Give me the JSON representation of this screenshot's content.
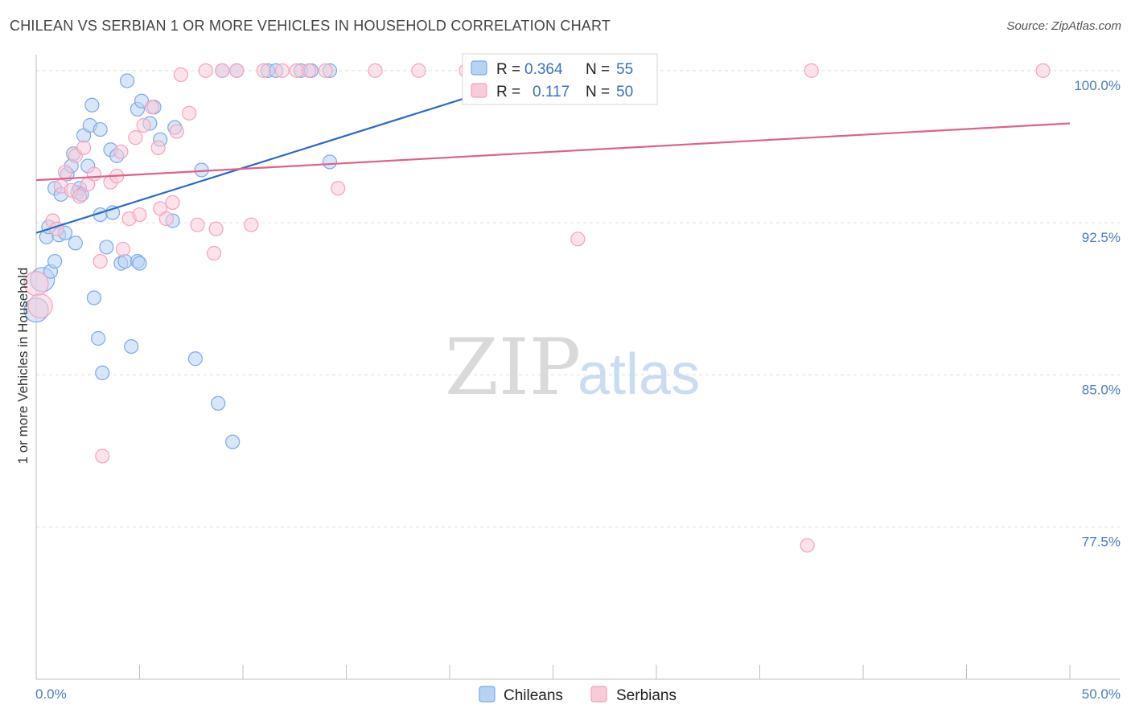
{
  "title": "CHILEAN VS SERBIAN 1 OR MORE VEHICLES IN HOUSEHOLD CORRELATION CHART",
  "source": "Source: ZipAtlas.com",
  "watermark": {
    "zip": "ZIP",
    "atlas": "atlas"
  },
  "legend_box": {
    "rows": [
      {
        "r_label": "R =",
        "r_value": "0.364",
        "n_label": "N =",
        "n_value": "55"
      },
      {
        "r_label": "R =",
        "r_value": "0.117",
        "n_label": "N =",
        "n_value": "50"
      }
    ]
  },
  "chart_data": {
    "type": "scatter",
    "title": "CHILEAN VS SERBIAN 1 OR MORE VEHICLES IN HOUSEHOLD CORRELATION CHART",
    "xlabel": "",
    "ylabel": "1 or more Vehicles in Household",
    "xlim": [
      0,
      50
    ],
    "ylim": [
      70.0,
      101.5
    ],
    "x_tick_labels": [
      "0.0%",
      "50.0%"
    ],
    "y_ticks": [
      77.5,
      85.0,
      92.5,
      100.0
    ],
    "y_tick_labels": [
      "77.5%",
      "85.0%",
      "92.5%",
      "100.0%"
    ],
    "grid": true,
    "legend_position": "bottom",
    "colors": {
      "Chileans": "#7aaae8",
      "Serbians": "#f4a3bd",
      "Chileans_line": "#2a6ac8",
      "Serbians_line": "#e0608c"
    },
    "series": [
      {
        "name": "Chileans",
        "R": 0.364,
        "N": 55,
        "trend": {
          "x": [
            0.0,
            25.0
          ],
          "y": [
            92.0,
            100.0
          ]
        },
        "points": [
          [
            0.0,
            88.2
          ],
          [
            0.3,
            89.7
          ],
          [
            0.5,
            91.8
          ],
          [
            0.6,
            92.3
          ],
          [
            0.7,
            90.1
          ],
          [
            0.9,
            90.6
          ],
          [
            0.9,
            94.2
          ],
          [
            1.1,
            91.9
          ],
          [
            1.2,
            93.9
          ],
          [
            1.4,
            92.0
          ],
          [
            1.5,
            94.9
          ],
          [
            1.7,
            95.3
          ],
          [
            1.8,
            95.9
          ],
          [
            1.9,
            91.5
          ],
          [
            2.0,
            94.0
          ],
          [
            2.1,
            94.2
          ],
          [
            2.2,
            93.9
          ],
          [
            2.3,
            96.8
          ],
          [
            2.5,
            95.3
          ],
          [
            2.6,
            97.3
          ],
          [
            2.7,
            98.3
          ],
          [
            2.8,
            88.8
          ],
          [
            3.0,
            86.8
          ],
          [
            3.1,
            97.1
          ],
          [
            3.1,
            92.9
          ],
          [
            3.2,
            85.1
          ],
          [
            3.4,
            91.3
          ],
          [
            3.6,
            96.1
          ],
          [
            3.7,
            93.0
          ],
          [
            3.9,
            95.8
          ],
          [
            4.1,
            90.5
          ],
          [
            4.3,
            90.6
          ],
          [
            4.4,
            99.5
          ],
          [
            4.6,
            86.4
          ],
          [
            4.9,
            98.1
          ],
          [
            4.9,
            90.6
          ],
          [
            5.0,
            90.5
          ],
          [
            5.1,
            98.5
          ],
          [
            5.5,
            97.4
          ],
          [
            5.7,
            98.2
          ],
          [
            6.0,
            96.6
          ],
          [
            6.6,
            92.6
          ],
          [
            6.7,
            97.2
          ],
          [
            7.7,
            85.8
          ],
          [
            8.0,
            95.1
          ],
          [
            8.8,
            83.6
          ],
          [
            9.0,
            100.0
          ],
          [
            9.5,
            81.7
          ],
          [
            9.7,
            100.0
          ],
          [
            11.2,
            100.0
          ],
          [
            11.6,
            100.0
          ],
          [
            12.8,
            100.0
          ],
          [
            13.3,
            100.0
          ],
          [
            14.2,
            100.0
          ],
          [
            14.2,
            95.5
          ]
        ]
      },
      {
        "name": "Serbians",
        "R": 0.117,
        "N": 50,
        "trend": {
          "x": [
            0.0,
            50.0
          ],
          "y": [
            94.6,
            97.4
          ]
        },
        "points": [
          [
            0.0,
            89.5
          ],
          [
            0.2,
            88.4
          ],
          [
            0.8,
            92.6
          ],
          [
            1.0,
            92.2
          ],
          [
            1.2,
            94.3
          ],
          [
            1.4,
            95.0
          ],
          [
            1.7,
            94.1
          ],
          [
            1.9,
            95.8
          ],
          [
            2.1,
            93.8
          ],
          [
            2.3,
            96.2
          ],
          [
            2.5,
            94.4
          ],
          [
            2.8,
            94.9
          ],
          [
            3.1,
            90.6
          ],
          [
            3.2,
            81.0
          ],
          [
            3.6,
            94.5
          ],
          [
            3.9,
            94.8
          ],
          [
            4.1,
            96.0
          ],
          [
            4.2,
            91.2
          ],
          [
            4.5,
            92.7
          ],
          [
            4.8,
            96.7
          ],
          [
            5.0,
            92.9
          ],
          [
            5.2,
            97.3
          ],
          [
            5.6,
            98.2
          ],
          [
            5.9,
            96.2
          ],
          [
            6.0,
            93.2
          ],
          [
            6.3,
            92.7
          ],
          [
            6.6,
            93.5
          ],
          [
            6.8,
            97.0
          ],
          [
            7.0,
            99.8
          ],
          [
            7.4,
            97.9
          ],
          [
            7.8,
            92.4
          ],
          [
            8.2,
            100.0
          ],
          [
            8.6,
            91.0
          ],
          [
            8.7,
            92.2
          ],
          [
            9.0,
            100.0
          ],
          [
            9.7,
            100.0
          ],
          [
            10.4,
            92.4
          ],
          [
            11.0,
            100.0
          ],
          [
            11.9,
            100.0
          ],
          [
            12.6,
            100.0
          ],
          [
            13.2,
            100.0
          ],
          [
            14.0,
            100.0
          ],
          [
            14.6,
            94.2
          ],
          [
            16.4,
            100.0
          ],
          [
            18.5,
            100.0
          ],
          [
            20.8,
            100.0
          ],
          [
            26.2,
            91.7
          ],
          [
            37.3,
            76.6
          ],
          [
            37.5,
            100.0
          ],
          [
            48.7,
            100.0
          ]
        ]
      }
    ]
  }
}
